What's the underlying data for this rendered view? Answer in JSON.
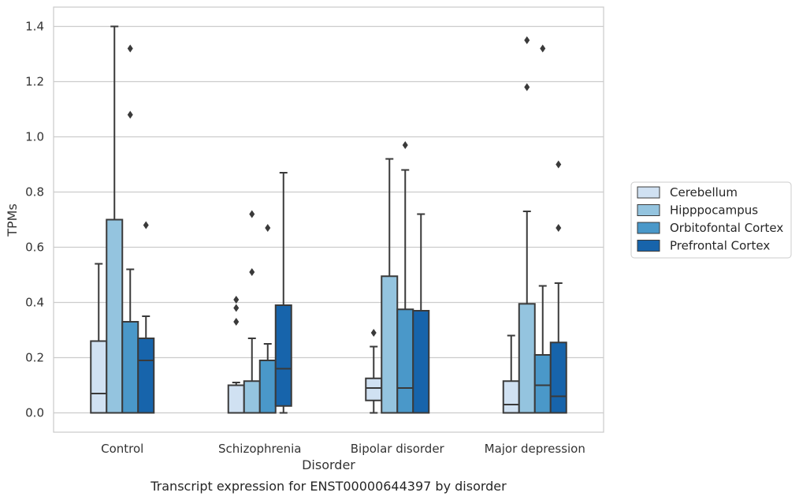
{
  "chart_data": {
    "type": "boxplot",
    "caption": "Transcript expression for ENST00000644397 by disorder",
    "xlabel": "Disorder",
    "ylabel": "TPMs",
    "ylim": [
      -0.07,
      1.47
    ],
    "yticks": [
      "0.0",
      "0.2",
      "0.4",
      "0.6",
      "0.8",
      "1.0",
      "1.2",
      "1.4"
    ],
    "grid": "horizontal",
    "legend_position": "right",
    "categories": [
      "Control",
      "Schizophrenia",
      "Bipolar disorder",
      "Major depression"
    ],
    "series": [
      {
        "name": "Cerebellum",
        "color": "#d0e1f2",
        "boxes": [
          {
            "whisker_low": 0.0,
            "q1": 0.0,
            "median": 0.07,
            "q3": 0.26,
            "whisker_high": 0.54,
            "outliers": []
          },
          {
            "whisker_low": 0.0,
            "q1": 0.0,
            "median": 0.0,
            "q3": 0.1,
            "whisker_high": 0.11,
            "outliers": [
              0.33,
              0.38,
              0.41
            ]
          },
          {
            "whisker_low": 0.0,
            "q1": 0.045,
            "median": 0.09,
            "q3": 0.125,
            "whisker_high": 0.24,
            "outliers": [
              0.29
            ]
          },
          {
            "whisker_low": 0.0,
            "q1": 0.0,
            "median": 0.03,
            "q3": 0.115,
            "whisker_high": 0.28,
            "outliers": []
          }
        ]
      },
      {
        "name": "Hipppocampus",
        "color": "#94c4df",
        "boxes": [
          {
            "whisker_low": 0.0,
            "q1": 0.0,
            "median": 0.0,
            "q3": 0.7,
            "whisker_high": 1.4,
            "outliers": []
          },
          {
            "whisker_low": 0.0,
            "q1": 0.0,
            "median": 0.0,
            "q3": 0.115,
            "whisker_high": 0.27,
            "outliers": [
              0.51,
              0.72
            ]
          },
          {
            "whisker_low": 0.0,
            "q1": 0.0,
            "median": 0.0,
            "q3": 0.495,
            "whisker_high": 0.92,
            "outliers": []
          },
          {
            "whisker_low": 0.0,
            "q1": 0.0,
            "median": 0.0,
            "q3": 0.395,
            "whisker_high": 0.73,
            "outliers": [
              1.18,
              1.35
            ]
          }
        ]
      },
      {
        "name": "Orbitofontal Cortex",
        "color": "#4a98c9",
        "boxes": [
          {
            "whisker_low": 0.0,
            "q1": 0.0,
            "median": 0.0,
            "q3": 0.33,
            "whisker_high": 0.52,
            "outliers": [
              1.08,
              1.32
            ]
          },
          {
            "whisker_low": 0.0,
            "q1": 0.0,
            "median": 0.0,
            "q3": 0.19,
            "whisker_high": 0.25,
            "outliers": [
              0.67
            ]
          },
          {
            "whisker_low": 0.0,
            "q1": 0.0,
            "median": 0.09,
            "q3": 0.375,
            "whisker_high": 0.88,
            "outliers": [
              0.97
            ]
          },
          {
            "whisker_low": 0.0,
            "q1": 0.0,
            "median": 0.1,
            "q3": 0.21,
            "whisker_high": 0.46,
            "outliers": [
              1.32
            ]
          }
        ]
      },
      {
        "name": "Prefrontal Cortex",
        "color": "#1764ab",
        "boxes": [
          {
            "whisker_low": 0.0,
            "q1": 0.0,
            "median": 0.19,
            "q3": 0.27,
            "whisker_high": 0.35,
            "outliers": [
              0.68
            ]
          },
          {
            "whisker_low": 0.0,
            "q1": 0.025,
            "median": 0.16,
            "q3": 0.39,
            "whisker_high": 0.87,
            "outliers": []
          },
          {
            "whisker_low": 0.0,
            "q1": 0.0,
            "median": 0.0,
            "q3": 0.37,
            "whisker_high": 0.72,
            "outliers": []
          },
          {
            "whisker_low": 0.0,
            "q1": 0.0,
            "median": 0.06,
            "q3": 0.255,
            "whisker_high": 0.47,
            "outliers": [
              0.67,
              0.9
            ]
          }
        ]
      }
    ]
  }
}
